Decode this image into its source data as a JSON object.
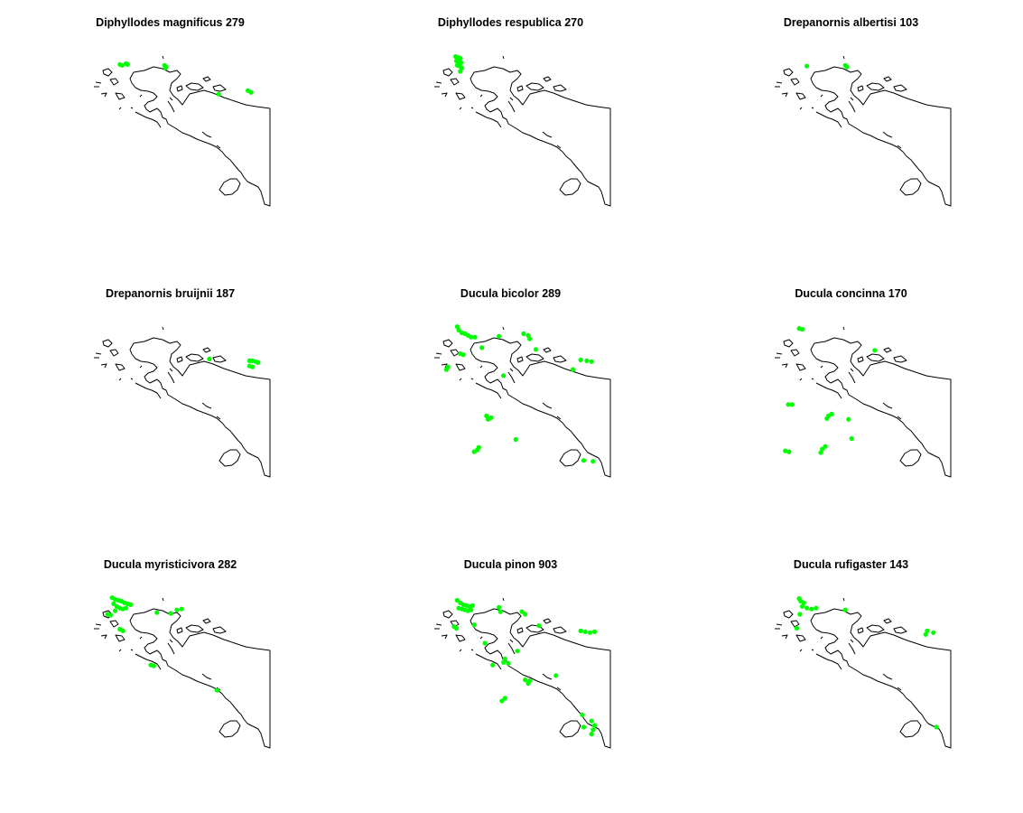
{
  "colors": {
    "points": "#00ff00",
    "outline": "#000000",
    "background": "#ffffff"
  },
  "chart_data": [
    {
      "type": "scatter",
      "title": "Diphyllodes magnificus 279",
      "points": [
        {
          "lon": 131.1,
          "lat": -0.9
        },
        {
          "lon": 131.25,
          "lat": -0.95
        },
        {
          "lon": 131.5,
          "lat": -0.85
        },
        {
          "lon": 131.6,
          "lat": -0.9
        },
        {
          "lon": 134.0,
          "lat": -0.95
        },
        {
          "lon": 134.05,
          "lat": -1.1
        },
        {
          "lon": 134.1,
          "lat": -1.05
        },
        {
          "lon": 137.5,
          "lat": -2.6
        },
        {
          "lon": 139.4,
          "lat": -2.4
        },
        {
          "lon": 139.6,
          "lat": -2.5
        }
      ]
    },
    {
      "type": "scatter",
      "title": "Diphyllodes respublica 270",
      "points": [
        {
          "lon": 130.8,
          "lat": -0.45
        },
        {
          "lon": 130.95,
          "lat": -0.5
        },
        {
          "lon": 131.1,
          "lat": -0.55
        },
        {
          "lon": 130.85,
          "lat": -0.7
        },
        {
          "lon": 131.0,
          "lat": -0.75
        },
        {
          "lon": 131.15,
          "lat": -0.8
        },
        {
          "lon": 130.9,
          "lat": -0.95
        },
        {
          "lon": 131.05,
          "lat": -1.0
        },
        {
          "lon": 131.2,
          "lat": -1.1
        },
        {
          "lon": 131.1,
          "lat": -1.3
        }
      ]
    },
    {
      "type": "scatter",
      "title": "Drepanornis albertisi 103",
      "points": [
        {
          "lon": 131.5,
          "lat": -1.0
        },
        {
          "lon": 134.0,
          "lat": -0.95
        },
        {
          "lon": 134.1,
          "lat": -1.05
        }
      ]
    },
    {
      "type": "scatter",
      "title": "Drepanornis bruijnii 187",
      "points": [
        {
          "lon": 136.9,
          "lat": -2.25
        },
        {
          "lon": 139.5,
          "lat": -2.35
        },
        {
          "lon": 139.7,
          "lat": -2.35
        },
        {
          "lon": 139.9,
          "lat": -2.4
        },
        {
          "lon": 140.05,
          "lat": -2.45
        },
        {
          "lon": 139.5,
          "lat": -2.65
        },
        {
          "lon": 139.7,
          "lat": -2.7
        }
      ]
    },
    {
      "type": "scatter",
      "title": "Ducula bicolor 289",
      "points": [
        {
          "lon": 130.9,
          "lat": -0.4
        },
        {
          "lon": 131.0,
          "lat": -0.6
        },
        {
          "lon": 131.2,
          "lat": -0.75
        },
        {
          "lon": 131.4,
          "lat": -0.8
        },
        {
          "lon": 131.6,
          "lat": -0.9
        },
        {
          "lon": 131.8,
          "lat": -1.0
        },
        {
          "lon": 132.05,
          "lat": -1.0
        },
        {
          "lon": 131.1,
          "lat": -1.95
        },
        {
          "lon": 131.3,
          "lat": -2.0
        },
        {
          "lon": 132.5,
          "lat": -1.6
        },
        {
          "lon": 133.6,
          "lat": -0.95
        },
        {
          "lon": 135.2,
          "lat": -0.8
        },
        {
          "lon": 135.5,
          "lat": -0.9
        },
        {
          "lon": 135.6,
          "lat": -1.1
        },
        {
          "lon": 136.0,
          "lat": -1.7
        },
        {
          "lon": 133.9,
          "lat": -3.2
        },
        {
          "lon": 130.2,
          "lat": -2.85
        },
        {
          "lon": 130.3,
          "lat": -2.7
        },
        {
          "lon": 138.9,
          "lat": -2.3
        },
        {
          "lon": 139.3,
          "lat": -2.35
        },
        {
          "lon": 139.6,
          "lat": -2.4
        },
        {
          "lon": 138.4,
          "lat": -2.85
        },
        {
          "lon": 132.8,
          "lat": -5.5
        },
        {
          "lon": 133.1,
          "lat": -5.6
        },
        {
          "lon": 132.9,
          "lat": -5.7
        },
        {
          "lon": 134.7,
          "lat": -6.85
        },
        {
          "lon": 132.3,
          "lat": -7.3
        },
        {
          "lon": 132.2,
          "lat": -7.45
        },
        {
          "lon": 132.0,
          "lat": -7.55
        },
        {
          "lon": 139.1,
          "lat": -8.05
        },
        {
          "lon": 139.7,
          "lat": -8.1
        }
      ]
    },
    {
      "type": "scatter",
      "title": "Ducula concinna 170",
      "points": [
        {
          "lon": 131.0,
          "lat": -0.5
        },
        {
          "lon": 131.2,
          "lat": -0.55
        },
        {
          "lon": 135.9,
          "lat": -1.75
        },
        {
          "lon": 130.3,
          "lat": -4.85
        },
        {
          "lon": 130.55,
          "lat": -4.85
        },
        {
          "lon": 132.9,
          "lat": -5.5
        },
        {
          "lon": 133.1,
          "lat": -5.4
        },
        {
          "lon": 132.8,
          "lat": -5.65
        },
        {
          "lon": 134.2,
          "lat": -5.7
        },
        {
          "lon": 134.4,
          "lat": -6.8
        },
        {
          "lon": 130.1,
          "lat": -7.5
        },
        {
          "lon": 130.35,
          "lat": -7.55
        },
        {
          "lon": 132.5,
          "lat": -7.4
        },
        {
          "lon": 132.7,
          "lat": -7.25
        },
        {
          "lon": 132.4,
          "lat": -7.6
        }
      ]
    },
    {
      "type": "scatter",
      "title": "Ducula myristicivora 282",
      "points": [
        {
          "lon": 130.6,
          "lat": -0.4
        },
        {
          "lon": 130.8,
          "lat": -0.5
        },
        {
          "lon": 131.0,
          "lat": -0.55
        },
        {
          "lon": 131.2,
          "lat": -0.6
        },
        {
          "lon": 131.4,
          "lat": -0.7
        },
        {
          "lon": 131.6,
          "lat": -0.75
        },
        {
          "lon": 131.8,
          "lat": -0.8
        },
        {
          "lon": 130.7,
          "lat": -0.75
        },
        {
          "lon": 130.9,
          "lat": -0.9
        },
        {
          "lon": 131.1,
          "lat": -1.0
        },
        {
          "lon": 131.3,
          "lat": -1.05
        },
        {
          "lon": 131.5,
          "lat": -1.0
        },
        {
          "lon": 130.8,
          "lat": -1.15
        },
        {
          "lon": 130.3,
          "lat": -1.35
        },
        {
          "lon": 130.5,
          "lat": -1.4
        },
        {
          "lon": 131.1,
          "lat": -2.2
        },
        {
          "lon": 131.3,
          "lat": -2.3
        },
        {
          "lon": 133.5,
          "lat": -1.25
        },
        {
          "lon": 134.4,
          "lat": -1.3
        },
        {
          "lon": 134.8,
          "lat": -1.1
        },
        {
          "lon": 135.1,
          "lat": -1.05
        },
        {
          "lon": 133.1,
          "lat": -4.25
        },
        {
          "lon": 133.3,
          "lat": -4.3
        },
        {
          "lon": 137.4,
          "lat": -5.7
        }
      ]
    },
    {
      "type": "scatter",
      "title": "Ducula pinon 903",
      "points": [
        {
          "lon": 130.9,
          "lat": -0.55
        },
        {
          "lon": 131.1,
          "lat": -0.7
        },
        {
          "lon": 131.3,
          "lat": -0.8
        },
        {
          "lon": 131.5,
          "lat": -0.85
        },
        {
          "lon": 131.7,
          "lat": -0.9
        },
        {
          "lon": 131.9,
          "lat": -0.85
        },
        {
          "lon": 131.0,
          "lat": -1.0
        },
        {
          "lon": 131.2,
          "lat": -1.05
        },
        {
          "lon": 131.4,
          "lat": -1.1
        },
        {
          "lon": 131.6,
          "lat": -1.15
        },
        {
          "lon": 131.8,
          "lat": -1.1
        },
        {
          "lon": 130.7,
          "lat": -2.05
        },
        {
          "lon": 130.85,
          "lat": -2.15
        },
        {
          "lon": 132.0,
          "lat": -1.95
        },
        {
          "lon": 133.6,
          "lat": -0.95
        },
        {
          "lon": 133.7,
          "lat": -1.2
        },
        {
          "lon": 135.1,
          "lat": -1.2
        },
        {
          "lon": 135.3,
          "lat": -1.35
        },
        {
          "lon": 136.2,
          "lat": -2.0
        },
        {
          "lon": 134.8,
          "lat": -3.45
        },
        {
          "lon": 132.7,
          "lat": -3.0
        },
        {
          "lon": 134.0,
          "lat": -3.9
        },
        {
          "lon": 133.9,
          "lat": -4.1
        },
        {
          "lon": 134.2,
          "lat": -4.15
        },
        {
          "lon": 133.2,
          "lat": -4.25
        },
        {
          "lon": 135.3,
          "lat": -5.1
        },
        {
          "lon": 135.6,
          "lat": -5.15
        },
        {
          "lon": 135.5,
          "lat": -5.3
        },
        {
          "lon": 137.3,
          "lat": -4.85
        },
        {
          "lon": 134.0,
          "lat": -6.15
        },
        {
          "lon": 133.8,
          "lat": -6.3
        },
        {
          "lon": 138.9,
          "lat": -2.3
        },
        {
          "lon": 139.2,
          "lat": -2.35
        },
        {
          "lon": 139.5,
          "lat": -2.4
        },
        {
          "lon": 139.8,
          "lat": -2.35
        },
        {
          "lon": 139.0,
          "lat": -7.1
        },
        {
          "lon": 139.6,
          "lat": -7.45
        },
        {
          "lon": 139.8,
          "lat": -7.7
        },
        {
          "lon": 139.7,
          "lat": -7.95
        },
        {
          "lon": 139.1,
          "lat": -7.8
        },
        {
          "lon": 139.6,
          "lat": -8.2
        }
      ]
    },
    {
      "type": "scatter",
      "title": "Ducula rufigaster 143",
      "points": [
        {
          "lon": 131.0,
          "lat": -0.45
        },
        {
          "lon": 131.1,
          "lat": -0.6
        },
        {
          "lon": 131.3,
          "lat": -0.7
        },
        {
          "lon": 131.2,
          "lat": -0.9
        },
        {
          "lon": 131.5,
          "lat": -1.0
        },
        {
          "lon": 131.8,
          "lat": -1.05
        },
        {
          "lon": 132.1,
          "lat": -1.0
        },
        {
          "lon": 131.05,
          "lat": -1.35
        },
        {
          "lon": 130.85,
          "lat": -2.15
        },
        {
          "lon": 134.0,
          "lat": -1.1
        },
        {
          "lon": 139.3,
          "lat": -2.3
        },
        {
          "lon": 139.2,
          "lat": -2.5
        },
        {
          "lon": 139.7,
          "lat": -2.4
        },
        {
          "lon": 139.9,
          "lat": -7.8
        }
      ]
    }
  ]
}
